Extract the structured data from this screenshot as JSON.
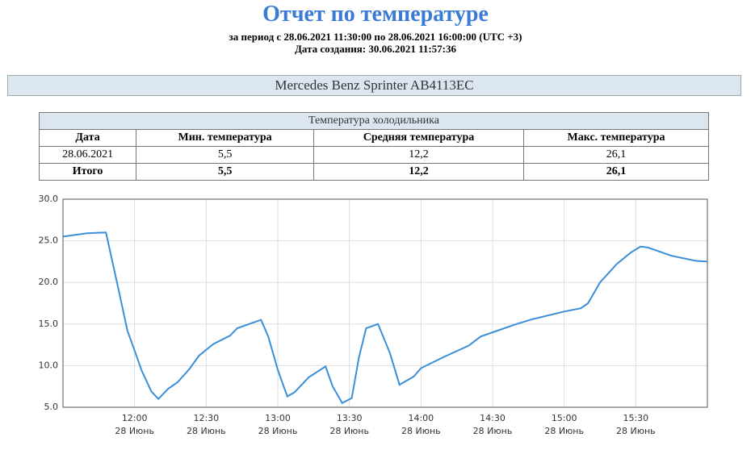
{
  "header": {
    "title": "Отчет по температуре",
    "period": "за период с 28.06.2021 11:30:00 по 28.06.2021 16:00:00 (UTC +3)",
    "created": "Дата создания: 30.06.2021 11:57:36"
  },
  "vehicle": "Mercedes Benz Sprinter AB4113EC",
  "table": {
    "caption": "Температура холодильника",
    "columns": [
      "Дата",
      "Мин. температура",
      "Средняя температура",
      "Макс. температура"
    ],
    "rows": [
      [
        "28.06.2021",
        "5,5",
        "12,2",
        "26,1"
      ],
      [
        "Итого",
        "5,5",
        "12,2",
        "26,1"
      ]
    ]
  },
  "chart_data": {
    "type": "line",
    "x": [
      "11:30",
      "11:40",
      "11:48",
      "11:53",
      "11:57",
      "12:00",
      "12:03",
      "12:07",
      "12:10",
      "12:14",
      "12:18",
      "12:23",
      "12:27",
      "12:33",
      "12:40",
      "12:43",
      "12:50",
      "12:53",
      "12:56",
      "13:00",
      "13:04",
      "13:07",
      "13:13",
      "13:20",
      "13:23",
      "13:27",
      "13:31",
      "13:34",
      "13:37",
      "13:42",
      "13:47",
      "13:51",
      "13:57",
      "14:00",
      "14:10",
      "14:20",
      "14:25",
      "14:33",
      "14:40",
      "14:47",
      "15:00",
      "15:07",
      "15:10",
      "15:15",
      "15:22",
      "15:28",
      "15:32",
      "15:35",
      "15:45",
      "15:55",
      "16:00"
    ],
    "series": [
      {
        "color": "#3a8fd8",
        "values": [
          25.5,
          25.9,
          26.0,
          19.5,
          14.2,
          11.8,
          9.4,
          6.9,
          6.0,
          7.2,
          8.0,
          9.6,
          11.2,
          12.6,
          13.6,
          14.5,
          15.2,
          15.5,
          13.5,
          9.5,
          6.3,
          6.8,
          8.6,
          9.9,
          7.5,
          5.5,
          6.1,
          11.0,
          14.5,
          15.0,
          11.5,
          7.7,
          8.7,
          9.7,
          11.1,
          12.4,
          13.5,
          14.3,
          15.0,
          15.6,
          16.5,
          16.9,
          17.5,
          20.0,
          22.2,
          23.6,
          24.3,
          24.2,
          23.2,
          22.6,
          22.5
        ]
      }
    ],
    "xlim": [
      "11:30",
      "16:00"
    ],
    "xticks": [
      {
        "value": "12:00",
        "label": [
          "12:00",
          "28 Июнь"
        ]
      },
      {
        "value": "12:30",
        "label": [
          "12:30",
          "28 Июнь"
        ]
      },
      {
        "value": "13:00",
        "label": [
          "13:00",
          "28 Июнь"
        ]
      },
      {
        "value": "13:30",
        "label": [
          "13:30",
          "28 Июнь"
        ]
      },
      {
        "value": "14:00",
        "label": [
          "14:00",
          "28 Июнь"
        ]
      },
      {
        "value": "14:30",
        "label": [
          "14:30",
          "28 Июнь"
        ]
      },
      {
        "value": "15:00",
        "label": [
          "15:00",
          "28 Июнь"
        ]
      },
      {
        "value": "15:30",
        "label": [
          "15:30",
          "28 Июнь"
        ]
      }
    ],
    "ylim": [
      5,
      30
    ],
    "yticks": [
      {
        "value": 5,
        "label": "5.0"
      },
      {
        "value": 10,
        "label": "10.0"
      },
      {
        "value": 15,
        "label": "15.0"
      },
      {
        "value": 20,
        "label": "20.0"
      },
      {
        "value": 25,
        "label": "25.0"
      },
      {
        "value": 30,
        "label": "30.0"
      }
    ],
    "grid": true
  }
}
